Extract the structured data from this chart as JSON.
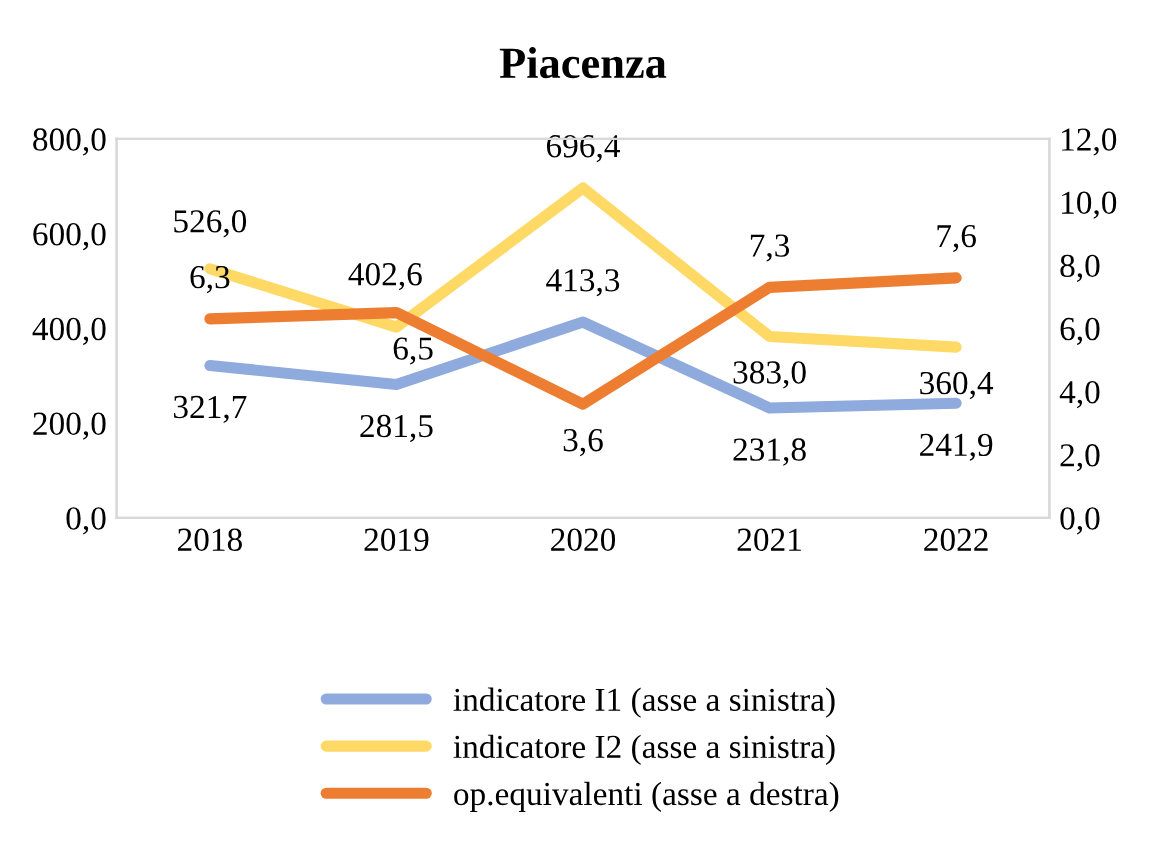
{
  "chart_data": {
    "type": "line",
    "title": "Piacenza",
    "categories": [
      "2018",
      "2019",
      "2020",
      "2021",
      "2022"
    ],
    "series": [
      {
        "name": "indicatore I1 (asse a sinistra)",
        "color": "#8faadc",
        "values": [
          321.7,
          281.5,
          413.3,
          231.8,
          241.9
        ],
        "value_labels": [
          "321,7",
          "281,5",
          "413,3",
          "231,8",
          "241,9"
        ]
      },
      {
        "name": "indicatore I2 (asse a sinistra)",
        "color": "#ffd966",
        "values": [
          526.0,
          402.6,
          696.4,
          383.0,
          360.4
        ],
        "value_labels": [
          "526,0",
          "402,6",
          "696,4",
          "383,0",
          "360,4"
        ]
      },
      {
        "name": "op.equivalenti (asse a destra)",
        "color": "#ed7d31",
        "axis": "y2",
        "values": [
          6.3,
          6.5,
          3.6,
          7.3,
          7.6
        ],
        "value_labels": [
          "6,3",
          "6,5",
          "3,6",
          "7,3",
          "7,6"
        ]
      }
    ],
    "ylim": [
      0,
      800
    ],
    "yticks": [
      {
        "value": 0,
        "label": "0,0"
      },
      {
        "value": 200,
        "label": "200,0"
      },
      {
        "value": 400,
        "label": "400,0"
      },
      {
        "value": 600,
        "label": "600,0"
      },
      {
        "value": 800,
        "label": "800,0"
      }
    ],
    "y2lim": [
      0,
      12
    ],
    "y2ticks": [
      {
        "value": 0,
        "label": "0,0"
      },
      {
        "value": 2,
        "label": "2,0"
      },
      {
        "value": 4,
        "label": "4,0"
      },
      {
        "value": 6,
        "label": "6,0"
      },
      {
        "value": 8,
        "label": "8,0"
      },
      {
        "value": 10,
        "label": "10,0"
      },
      {
        "value": 12,
        "label": "12,0"
      }
    ],
    "grid": false,
    "legend": "bottom",
    "marker": "none",
    "line_style": "solid"
  }
}
